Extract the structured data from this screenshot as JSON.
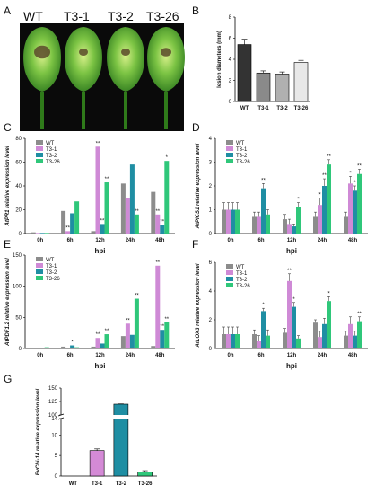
{
  "panel_letters": [
    "A",
    "B",
    "C",
    "D",
    "E",
    "F",
    "G"
  ],
  "photo_labels": [
    "WT",
    "T3-1",
    "T3-2",
    "T3-26"
  ],
  "colors": {
    "WT": "#8c8c8c",
    "T3-1": "#cf8ad6",
    "T3-2": "#1f8ea3",
    "T3-26": "#2fc77a",
    "B_WT": "#333333",
    "B_T3-1": "#8a8a8a",
    "B_T3-2": "#b0b0b0",
    "B_T3-26": "#e8e8e8",
    "G_WT": "#8c8c8c",
    "G_T3-1": "#d48ad6",
    "G_T3-2": "#1f8ea3",
    "G_T3-26": "#2fc77a"
  },
  "chart_data": [
    {
      "panel": "B",
      "type": "bar",
      "categories": [
        "WT",
        "T3-1",
        "T3-2",
        "T3-26"
      ],
      "values": [
        5.4,
        2.7,
        2.6,
        3.7
      ],
      "errors": [
        0.5,
        0.2,
        0.2,
        0.2
      ],
      "ylabel": "lesion diameters (mm)",
      "ylim": [
        0,
        8
      ],
      "yticks": [
        "0",
        "2",
        "4",
        "6",
        "8"
      ]
    },
    {
      "panel": "C",
      "type": "bar",
      "categories": [
        "0h",
        "6h",
        "12h",
        "24h",
        "48h"
      ],
      "series": [
        {
          "name": "WT",
          "values": [
            1,
            19,
            2,
            42,
            35
          ]
        },
        {
          "name": "T3-1",
          "values": [
            0.5,
            2,
            73,
            30,
            16
          ]
        },
        {
          "name": "T3-2",
          "values": [
            0.5,
            17,
            8,
            58,
            7
          ]
        },
        {
          "name": "T3-26",
          "values": [
            0.5,
            27,
            43,
            16,
            61
          ]
        }
      ],
      "sig": [
        [
          "",
          "",
          "",
          ""
        ],
        [
          "",
          "**",
          "",
          ""
        ],
        [
          "",
          "**",
          "**",
          "**"
        ],
        [
          "",
          "",
          "",
          "**"
        ],
        [
          "",
          "**",
          "**",
          "*"
        ]
      ],
      "xlabel": "hpi",
      "ylabel": "AtPR1 relative expression level",
      "ylim": [
        0,
        80
      ],
      "yticks": [
        "0",
        "20",
        "40",
        "60",
        "80"
      ]
    },
    {
      "panel": "D",
      "type": "bar",
      "categories": [
        "0h",
        "6h",
        "12h",
        "24h",
        "48h"
      ],
      "series": [
        {
          "name": "WT",
          "values": [
            1.0,
            0.7,
            0.6,
            0.7,
            0.7
          ]
        },
        {
          "name": "T3-1",
          "values": [
            1.0,
            0.7,
            0.4,
            1.2,
            2.1
          ]
        },
        {
          "name": "T3-2",
          "values": [
            1.0,
            1.9,
            0.3,
            2.0,
            1.8
          ]
        },
        {
          "name": "T3-26",
          "values": [
            1.0,
            0.8,
            1.1,
            2.9,
            2.5
          ]
        }
      ],
      "errors": [
        [
          0.3,
          0.3,
          0.3,
          0.3
        ],
        [
          0.2,
          0.2,
          0.2,
          0.2
        ],
        [
          0.2,
          0.2,
          0.1,
          0.2
        ],
        [
          0.2,
          0.3,
          0.3,
          0.2
        ],
        [
          0.2,
          0.3,
          0.2,
          0.2
        ]
      ],
      "sig": [
        [
          "",
          "",
          "",
          ""
        ],
        [
          "",
          "",
          "**",
          ""
        ],
        [
          "",
          "",
          "",
          "*"
        ],
        [
          "",
          "*",
          "**",
          "**"
        ],
        [
          "",
          "*",
          "*",
          "**"
        ]
      ],
      "xlabel": "hpi",
      "ylabel": "AtPICS1 relative expression level",
      "ylim": [
        0,
        4
      ],
      "yticks": [
        "0",
        "1",
        "2",
        "3",
        "4"
      ]
    },
    {
      "panel": "E",
      "type": "bar",
      "categories": [
        "0h",
        "6h",
        "12h",
        "24h",
        "48h"
      ],
      "series": [
        {
          "name": "WT",
          "values": [
            1,
            3,
            3,
            20,
            4
          ]
        },
        {
          "name": "T3-1",
          "values": [
            1,
            1,
            17,
            40,
            133
          ]
        },
        {
          "name": "T3-2",
          "values": [
            1,
            5,
            8,
            22,
            30
          ]
        },
        {
          "name": "T3-26",
          "values": [
            2,
            2,
            23,
            80,
            42
          ]
        }
      ],
      "sig": [
        [
          "",
          "",
          "",
          ""
        ],
        [
          "",
          "",
          "*",
          ""
        ],
        [
          "",
          "**",
          "",
          "**"
        ],
        [
          "",
          "**",
          "",
          "**"
        ],
        [
          "",
          "**",
          "**",
          "**"
        ]
      ],
      "xlabel": "hpi",
      "ylabel": "AtPDF1.2 relative expression level",
      "ylim": [
        0,
        150
      ],
      "yticks": [
        "0",
        "50",
        "100",
        "150"
      ]
    },
    {
      "panel": "F",
      "type": "bar",
      "categories": [
        "0h",
        "6h",
        "12h",
        "24h",
        "48h"
      ],
      "series": [
        {
          "name": "WT",
          "values": [
            1.0,
            1.0,
            1.1,
            1.8,
            0.9
          ]
        },
        {
          "name": "T3-1",
          "values": [
            1.0,
            0.5,
            4.7,
            0.8,
            1.7
          ]
        },
        {
          "name": "T3-2",
          "values": [
            1.0,
            2.6,
            2.9,
            1.7,
            0.9
          ]
        },
        {
          "name": "T3-26",
          "values": [
            1.0,
            0.9,
            0.7,
            3.3,
            1.9
          ]
        }
      ],
      "errors": [
        [
          0.5,
          0.5,
          0.5,
          0.5
        ],
        [
          0.3,
          0.4,
          0.2,
          0.4
        ],
        [
          0.3,
          0.5,
          0.3,
          0.2
        ],
        [
          0.2,
          0.4,
          0.4,
          0.3
        ],
        [
          0.3,
          0.5,
          0.3,
          0.3
        ]
      ],
      "sig": [
        [
          "",
          "",
          "",
          ""
        ],
        [
          "",
          "",
          "*",
          ""
        ],
        [
          "",
          "**",
          "*",
          ""
        ],
        [
          "",
          "",
          "",
          "*"
        ],
        [
          "",
          "",
          "",
          "**"
        ]
      ],
      "xlabel": "hpi",
      "ylabel": "AtLOX3 relative expression level",
      "ylim": [
        0,
        6
      ],
      "yticks": [
        "0",
        "2",
        "4",
        "6"
      ]
    },
    {
      "panel": "G",
      "type": "bar",
      "categories": [
        "WT",
        "T3-1",
        "T3-2",
        "T3-26"
      ],
      "values": [
        0,
        6.2,
        120,
        1.0
      ],
      "errors": [
        0,
        0.4,
        0.5,
        0.3
      ],
      "ylabel": "FvChi-14 relative expression level",
      "yticks": [
        "0",
        "5",
        "10",
        "14",
        "100",
        "125",
        "150"
      ],
      "axis_break": [
        14,
        100
      ]
    }
  ]
}
